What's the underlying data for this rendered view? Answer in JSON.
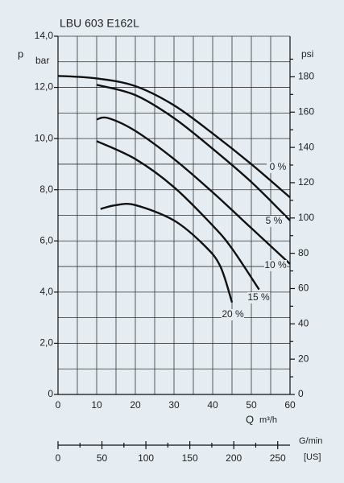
{
  "chart_data": {
    "type": "line",
    "title": "LBU 603 E162L",
    "ylabel": "p",
    "yunit": "bar",
    "y2unit": "psi",
    "xlabel": "Q",
    "xunit": "m³/h",
    "x2label": "G/min",
    "x2unit": "[US]",
    "xlim": [
      0,
      60
    ],
    "xticks": [
      0,
      10,
      20,
      30,
      40,
      50,
      60
    ],
    "xminor": [
      5,
      15,
      25,
      35,
      45,
      55
    ],
    "ylim": [
      0,
      14
    ],
    "yticks": [
      {
        "value": 0,
        "label": "0"
      },
      {
        "value": 2,
        "label": "2,0"
      },
      {
        "value": 4,
        "label": "4,0"
      },
      {
        "value": 6,
        "label": "6,0"
      },
      {
        "value": 8,
        "label": "8,0"
      },
      {
        "value": 10,
        "label": "10,0"
      },
      {
        "value": 12,
        "label": "12,0"
      },
      {
        "value": 14,
        "label": "14,0"
      }
    ],
    "yminor": [
      1,
      3,
      5,
      7,
      9,
      11,
      13
    ],
    "y2lim": [
      0,
      203
    ],
    "y2ticks": [
      0,
      20,
      40,
      60,
      80,
      100,
      120,
      140,
      160,
      180
    ],
    "y2minor": [
      10,
      30,
      50,
      70,
      90,
      110,
      130,
      150,
      170,
      190
    ],
    "x2lim": [
      0,
      264
    ],
    "x2ticks": [
      0,
      50,
      100,
      150,
      200,
      250
    ],
    "x2minor": [
      25,
      75,
      125,
      175,
      225
    ],
    "grid": true,
    "series": [
      {
        "name": "0 %",
        "color": "#111111",
        "x": [
          0,
          10,
          20,
          30,
          40,
          50,
          60
        ],
        "values": [
          12.45,
          12.35,
          12.05,
          11.3,
          10.2,
          9.0,
          7.7
        ]
      },
      {
        "name": "5 %",
        "color": "#111111",
        "x": [
          10,
          20,
          30,
          40,
          50,
          60
        ],
        "values": [
          12.1,
          11.7,
          10.8,
          9.6,
          8.3,
          6.8
        ]
      },
      {
        "name": "10 %",
        "color": "#111111",
        "x": [
          10,
          13,
          20,
          30,
          40,
          50,
          60
        ],
        "values": [
          10.75,
          10.8,
          10.3,
          9.2,
          7.9,
          6.5,
          5.1
        ]
      },
      {
        "name": "15 %",
        "color": "#111111",
        "x": [
          10,
          20,
          30,
          40,
          45,
          52
        ],
        "values": [
          9.9,
          9.2,
          8.1,
          6.6,
          5.7,
          4.1
        ]
      },
      {
        "name": "20 %",
        "color": "#111111",
        "x": [
          11,
          15,
          20,
          30,
          38,
          42,
          45
        ],
        "values": [
          7.25,
          7.4,
          7.4,
          6.8,
          5.8,
          5.0,
          3.6
        ]
      }
    ]
  }
}
